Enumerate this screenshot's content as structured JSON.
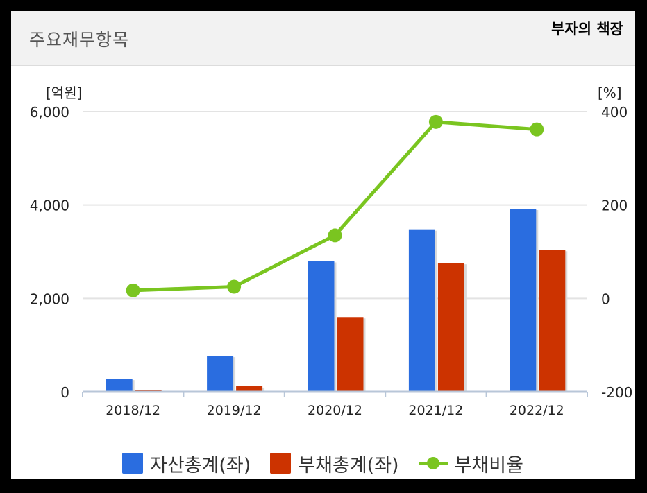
{
  "header": {
    "title": "주요재무항목",
    "watermark": "부자의 책장"
  },
  "chart_data": {
    "type": "bar",
    "categories": [
      "2018/12",
      "2019/12",
      "2020/12",
      "2021/12",
      "2022/12"
    ],
    "series": [
      {
        "name": "자산총계(좌)",
        "type": "bar",
        "axis": "left",
        "color": "#2a6de0",
        "values": [
          280,
          770,
          2800,
          3480,
          3920
        ]
      },
      {
        "name": "부채총계(좌)",
        "type": "bar",
        "axis": "left",
        "color": "#cc3300",
        "values": [
          40,
          120,
          1600,
          2760,
          3040
        ]
      },
      {
        "name": "부채비율",
        "type": "line",
        "axis": "right",
        "color": "#7ac520",
        "values": [
          17,
          25,
          135,
          378,
          362
        ]
      }
    ],
    "y_left": {
      "label": "[억원]",
      "lim": [
        0,
        6000
      ],
      "ticks": [
        "0",
        "2,000",
        "4,000",
        "6,000"
      ]
    },
    "y_right": {
      "label": "[%]",
      "lim": [
        -200,
        400
      ],
      "ticks": [
        "-200",
        "0",
        "200",
        "400"
      ]
    },
    "grid": true,
    "legend": "bottom"
  }
}
